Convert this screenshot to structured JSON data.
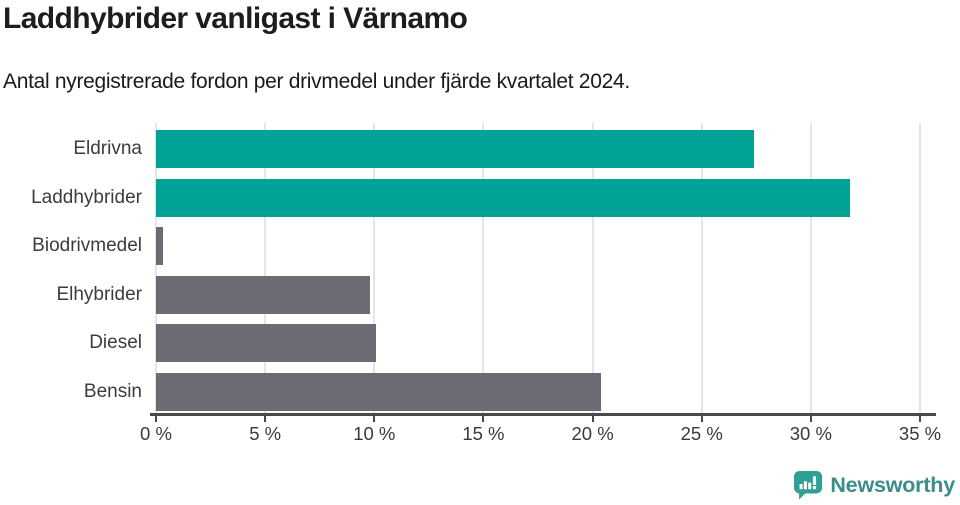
{
  "chart_data": {
    "type": "bar",
    "orientation": "horizontal",
    "title": "Laddhybrider vanligast i Värnamo",
    "subtitle": "Antal nyregistrerade fordon per drivmedel under fjärde kvartalet 2024.",
    "categories": [
      "Eldrivna",
      "Laddhybrider",
      "Biodrivmedel",
      "Elhybrider",
      "Diesel",
      "Bensin"
    ],
    "values": [
      27.4,
      31.8,
      0.3,
      9.8,
      10.1,
      20.4
    ],
    "unit": "%",
    "bar_colors": [
      "#00a396",
      "#00a396",
      "#6c6a72",
      "#6c6a72",
      "#6c6a72",
      "#6c6a72"
    ],
    "highlight_color": "#00a396",
    "default_color": "#6c6a72",
    "xlim": [
      0,
      35
    ],
    "x_ticks": [
      0,
      5,
      10,
      15,
      20,
      25,
      30,
      35
    ],
    "x_tick_labels": [
      "0 %",
      "5 %",
      "10 %",
      "15 %",
      "20 %",
      "25 %",
      "30 %",
      "35 %"
    ],
    "grid": true,
    "gridline_color": "#e5e5e5",
    "axis_color": "#4a4a4a",
    "category_label_color": "#3c3c3c",
    "tick_label_color": "#3a3a3a",
    "legend": "none"
  },
  "footer": {
    "brand": "Newsworthy",
    "brand_color": "#3b8c8c",
    "logo_color": "#2fa096"
  }
}
